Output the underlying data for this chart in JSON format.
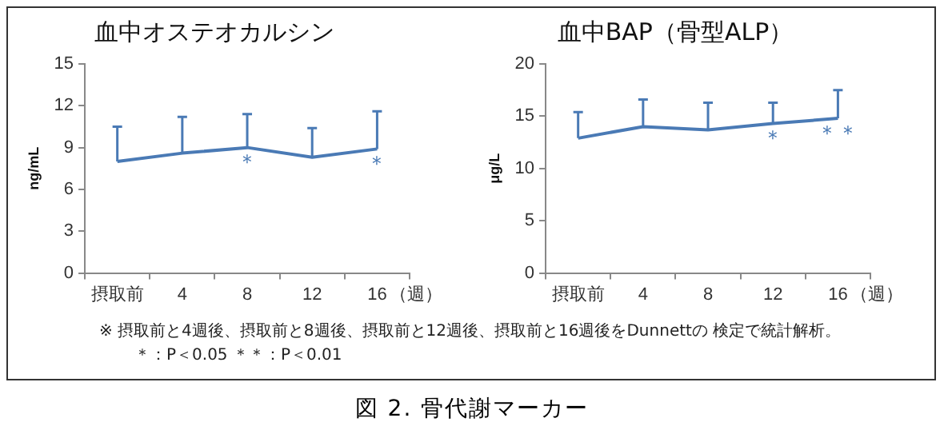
{
  "chart_data": [
    {
      "type": "line",
      "title": "血中オステオカルシン",
      "ylabel": "ng/mL",
      "xlabel": "（週）",
      "categories": [
        "摂取前",
        "4",
        "8",
        "12",
        "16"
      ],
      "ylim": [
        0,
        15
      ],
      "yticks": [
        0,
        3,
        6,
        9,
        12,
        15
      ],
      "grid": false,
      "series": [
        {
          "color": "#4a7ab5",
          "values": [
            8.0,
            8.6,
            9.0,
            8.3,
            8.9
          ],
          "errors": [
            [
              8.0,
              10.5
            ],
            [
              8.6,
              11.2
            ],
            [
              9.0,
              11.4
            ],
            [
              8.3,
              10.4
            ],
            [
              8.9,
              11.6
            ]
          ]
        }
      ],
      "annotations": [
        {
          "text": "＊",
          "x": "8",
          "y": 9.0
        },
        {
          "text": "＊",
          "x": "16",
          "y": 8.9
        }
      ]
    },
    {
      "type": "line",
      "title": "血中BAP（骨型ALP）",
      "ylabel": "μg/L",
      "xlabel": "（週）",
      "categories": [
        "摂取前",
        "4",
        "8",
        "12",
        "16"
      ],
      "ylim": [
        0,
        20
      ],
      "yticks": [
        0,
        5,
        10,
        15,
        20
      ],
      "grid": false,
      "series": [
        {
          "color": "#4a7ab5",
          "values": [
            12.9,
            14.0,
            13.7,
            14.3,
            14.8
          ],
          "errors": [
            [
              12.9,
              15.4
            ],
            [
              14.0,
              16.6
            ],
            [
              13.7,
              16.3
            ],
            [
              14.3,
              16.3
            ],
            [
              14.8,
              17.5
            ]
          ]
        }
      ],
      "annotations": [
        {
          "text": "＊",
          "x": "12",
          "y": 14.3
        },
        {
          "text": "＊＊",
          "x": "16",
          "y": 14.8
        }
      ]
    },
    {
      "type": "other",
      "title": "図 2. 骨代謝マーカー",
      "annotations": [
        "※ 摂取前と4週後、摂取前と8週後、摂取前と12週後、摂取前と16週後をDunnettの 検定で統計解析。",
        "＊：P＜0.05 ＊＊：P＜0.01"
      ]
    }
  ]
}
